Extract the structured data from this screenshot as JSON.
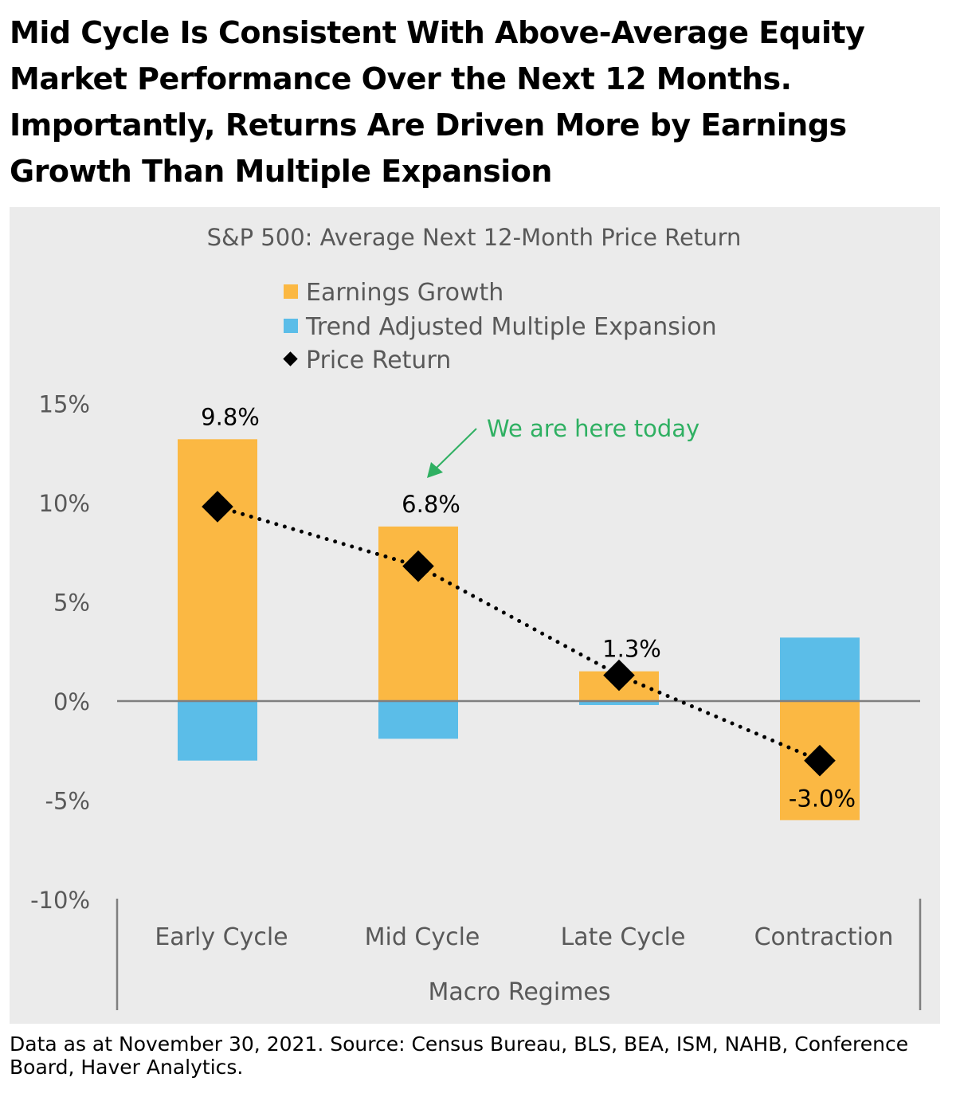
{
  "title": "Mid Cycle Is Consistent With Above-Average Equity Market Performance Over the Next 12 Months. Importantly, Returns Are Driven More by Earnings Growth Than Multiple Expansion",
  "footnote": "Data as at November 30, 2021. Source: Census Bureau, BLS, BEA, ISM, NAHB, Conference Board, Haver Analytics.",
  "chart_data": {
    "type": "bar",
    "title": "S&P 500: Average Next 12-Month Price Return",
    "xlabel": "Macro Regimes",
    "ylabel": "",
    "ylim": [
      -10,
      15
    ],
    "yticks": [
      15,
      10,
      5,
      0,
      -5,
      -10
    ],
    "ytick_labels": [
      "15%",
      "10%",
      "5%",
      "0%",
      "-5%",
      "-10%"
    ],
    "categories": [
      "Early Cycle",
      "Mid Cycle",
      "Late Cycle",
      "Contraction"
    ],
    "legend_position": "top-center",
    "series": [
      {
        "name": "Earnings Growth",
        "type": "bar",
        "color": "#fbb843",
        "values": [
          13.2,
          8.8,
          1.5,
          -6.0
        ]
      },
      {
        "name": "Trend Adjusted Multiple Expansion",
        "type": "bar",
        "color": "#5bbde8",
        "values": [
          -3.0,
          -1.9,
          -0.2,
          3.2
        ]
      },
      {
        "name": "Price Return",
        "type": "line-marker",
        "color": "#000000",
        "values": [
          9.8,
          6.8,
          1.3,
          -3.0
        ],
        "labels": [
          "9.8%",
          "6.8%",
          "1.3%",
          "-3.0%"
        ]
      }
    ],
    "annotation": {
      "text": "We are here today",
      "color": "#2fb062",
      "target": "Mid Cycle"
    }
  }
}
